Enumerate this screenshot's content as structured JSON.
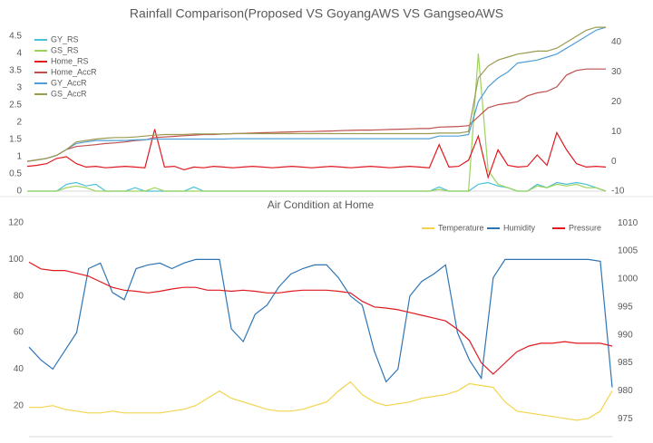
{
  "chart_data": [
    {
      "type": "line",
      "title": "Rainfall Comparison(Proposed VS GoyangAWS VS GangseoAWS",
      "legend": "upper left",
      "grid": false,
      "ylim": [
        0,
        4.5
      ],
      "yticks": [
        0,
        0.5,
        1,
        1.5,
        2,
        2.5,
        3,
        3.5,
        4,
        4.5
      ],
      "y2lim": [
        -10,
        42
      ],
      "y2ticks": [
        -10,
        0,
        10,
        20,
        30,
        40
      ],
      "series": [
        {
          "name": "GY_RS",
          "color": "#4bc0d9",
          "values": [
            0,
            0,
            0,
            0,
            0.2,
            0.25,
            0.15,
            0.2,
            0,
            0,
            0,
            0.1,
            0,
            0,
            0,
            0,
            0,
            0.12,
            0,
            0,
            0,
            0,
            0,
            0,
            0,
            0,
            0,
            0,
            0,
            0,
            0,
            0,
            0,
            0,
            0,
            0,
            0,
            0,
            0,
            0,
            0,
            0,
            0.12,
            0,
            0,
            0,
            0.2,
            0.25,
            0.15,
            0.1,
            0,
            0,
            0.2,
            0.1,
            0.25,
            0.2,
            0.25,
            0.2,
            0.1,
            0
          ]
        },
        {
          "name": "GS_RS",
          "color": "#9bd35a",
          "values": [
            0,
            0,
            0,
            0,
            0.1,
            0.15,
            0.1,
            0,
            0,
            0,
            0,
            0,
            0,
            0.1,
            0,
            0,
            0,
            0,
            0,
            0,
            0,
            0,
            0,
            0,
            0,
            0,
            0,
            0,
            0,
            0,
            0,
            0,
            0,
            0,
            0,
            0,
            0,
            0,
            0,
            0,
            0,
            0,
            0.05,
            0,
            0,
            0,
            4,
            0.6,
            0.2,
            0.1,
            0,
            0,
            0.15,
            0.1,
            0.2,
            0.15,
            0.2,
            0.1,
            0.1,
            0
          ]
        },
        {
          "name": "Home_RS",
          "color": "#e0191f",
          "values": [
            0.72,
            0.75,
            0.8,
            0.95,
            1.0,
            0.8,
            0.7,
            0.72,
            0.68,
            0.7,
            0.72,
            0.7,
            0.68,
            1.8,
            0.7,
            0.72,
            0.62,
            0.7,
            0.68,
            0.72,
            0.7,
            0.68,
            0.7,
            0.72,
            0.7,
            0.68,
            0.7,
            0.72,
            0.7,
            0.68,
            0.7,
            0.72,
            0.7,
            0.68,
            0.7,
            0.72,
            0.7,
            0.68,
            0.7,
            0.72,
            0.7,
            0.68,
            1.35,
            0.7,
            0.72,
            0.9,
            1.6,
            0.4,
            1.2,
            0.75,
            0.7,
            0.72,
            1.05,
            0.75,
            1.7,
            1.2,
            0.8,
            0.7,
            0.72,
            0.7
          ]
        },
        {
          "name": "Home_AccR",
          "color": "#c0504d",
          "axis": "y2",
          "values": [
            0,
            0.5,
            1,
            2,
            4,
            5,
            5.3,
            5.6,
            6,
            6.2,
            6.5,
            7,
            7.2,
            8,
            8.2,
            8.4,
            8.6,
            8.8,
            9,
            9,
            9.2,
            9.3,
            9.4,
            9.5,
            9.6,
            9.7,
            9.8,
            9.9,
            10,
            10,
            10.1,
            10.2,
            10.3,
            10.4,
            10.5,
            10.5,
            10.6,
            10.7,
            10.8,
            10.9,
            11,
            11,
            11.5,
            11.6,
            11.7,
            12,
            15,
            18,
            19,
            19.5,
            20,
            22,
            23,
            23.5,
            25,
            29,
            30.5,
            31,
            31,
            31
          ]
        },
        {
          "name": "GY_AccR",
          "color": "#4f9fd6",
          "axis": "y2",
          "values": [
            0,
            0.5,
            1,
            2,
            4,
            6,
            6.5,
            7,
            7,
            7,
            7,
            7.2,
            7.3,
            7.5,
            7.5,
            7.5,
            7.5,
            7.5,
            7.5,
            7.5,
            7.5,
            7.6,
            7.6,
            7.6,
            7.6,
            7.6,
            7.6,
            7.6,
            7.6,
            7.6,
            7.6,
            7.6,
            7.6,
            7.6,
            7.6,
            7.6,
            7.6,
            7.6,
            7.6,
            7.6,
            7.6,
            7.6,
            8.5,
            8.5,
            8.5,
            9,
            20,
            25,
            28,
            30,
            33,
            33.5,
            34,
            35,
            36,
            38,
            40,
            42,
            44,
            45
          ]
        },
        {
          "name": "GS_AccR",
          "color": "#9a9a50",
          "axis": "y2",
          "values": [
            0,
            0.5,
            1,
            2,
            4,
            6.5,
            7,
            7.5,
            7.8,
            8,
            8,
            8.2,
            8.5,
            8.8,
            9,
            9,
            9,
            9.2,
            9.2,
            9.2,
            9.2,
            9.3,
            9.3,
            9.3,
            9.3,
            9.3,
            9.3,
            9.3,
            9.3,
            9.3,
            9.3,
            9.3,
            9.3,
            9.3,
            9.3,
            9.3,
            9.3,
            9.3,
            9.3,
            9.3,
            9.3,
            9.3,
            9.5,
            9.5,
            9.5,
            10,
            28,
            32,
            34,
            35,
            36,
            36.5,
            37,
            37,
            38,
            40,
            42,
            44,
            45,
            45
          ]
        }
      ]
    },
    {
      "type": "line",
      "title": "Air Condition at Home",
      "legend": "upper right",
      "grid": false,
      "ylim": [
        3,
        123
      ],
      "yticks": [
        20,
        40,
        60,
        80,
        100,
        120
      ],
      "y2lim": [
        971.8,
        1011
      ],
      "y2ticks": [
        975,
        980,
        985,
        990,
        995,
        1000,
        1005,
        1010
      ],
      "series": [
        {
          "name": "Temperature",
          "color": "#f2d44e",
          "values": [
            19,
            19,
            20,
            18,
            17,
            16,
            16,
            17,
            16,
            16,
            16,
            16,
            17,
            18,
            20,
            24,
            28,
            24,
            22,
            20,
            18,
            17,
            17,
            18,
            20,
            22,
            28,
            33,
            26,
            22,
            20,
            21,
            22,
            24,
            25,
            26,
            28,
            32,
            31,
            30,
            22,
            17,
            16,
            15,
            14,
            13,
            12,
            13,
            17,
            28
          ]
        },
        {
          "name": "Humidity",
          "color": "#2e75b6",
          "values": [
            52,
            45,
            40,
            50,
            60,
            95,
            98,
            82,
            78,
            95,
            97,
            98,
            95,
            98,
            100,
            100,
            100,
            62,
            55,
            70,
            75,
            85,
            92,
            95,
            97,
            97,
            90,
            80,
            75,
            50,
            33,
            40,
            80,
            88,
            92,
            97,
            60,
            45,
            35,
            90,
            100,
            100,
            100,
            100,
            100,
            100,
            100,
            100,
            99,
            30
          ]
        },
        {
          "name": "Pressure",
          "color": "#e0191f",
          "axis": "y2",
          "values": [
            1003,
            1001.8,
            1001.5,
            1001.5,
            1001,
            1000.5,
            999.5,
            998.5,
            998,
            997.8,
            997.5,
            997.8,
            998.2,
            998.5,
            998.5,
            998,
            998,
            997.8,
            998,
            997.8,
            997.5,
            997.5,
            997.8,
            998,
            998,
            998,
            997.8,
            997.5,
            996,
            995,
            994.8,
            994.5,
            994,
            993.5,
            993,
            992.5,
            991,
            989,
            985,
            983,
            985,
            987,
            988,
            988.5,
            988.5,
            988.8,
            988.5,
            988.5,
            988.5,
            988
          ]
        }
      ]
    }
  ]
}
